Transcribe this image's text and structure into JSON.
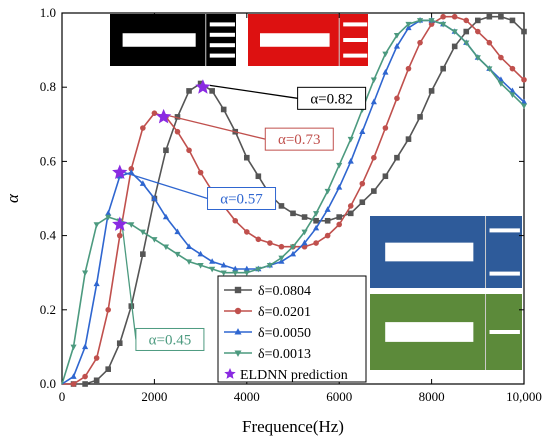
{
  "chart_data": {
    "type": "line",
    "xlabel": "Frequence(Hz)",
    "ylabel": "α",
    "xlim": [
      0,
      10000
    ],
    "ylim": [
      0,
      1.0
    ],
    "x_ticks": [
      0,
      2000,
      4000,
      6000,
      8000,
      10000
    ],
    "x_tick_labels": [
      "0",
      "2000",
      "4000",
      "6000",
      "8000",
      "10,000"
    ],
    "y_ticks": [
      0,
      0.2,
      0.4,
      0.6,
      0.8,
      1.0
    ],
    "y_tick_labels": [
      "0.0",
      "0.2",
      "0.4",
      "0.6",
      "0.8",
      "1.0"
    ],
    "grid": false,
    "legend_position": "bottom-center",
    "series": [
      {
        "name": "δ=0.0804",
        "color": "#555555",
        "marker": "square",
        "x": [
          0,
          250,
          500,
          750,
          1000,
          1250,
          1500,
          1750,
          2000,
          2250,
          2500,
          2750,
          3000,
          3250,
          3500,
          3750,
          4000,
          4250,
          4500,
          4750,
          5000,
          5250,
          5500,
          5750,
          6000,
          6250,
          6500,
          6750,
          7000,
          7250,
          7500,
          7750,
          8000,
          8250,
          8500,
          8750,
          9000,
          9250,
          9500,
          9750,
          10000
        ],
        "y": [
          0.0,
          0.0,
          0.0,
          0.01,
          0.04,
          0.11,
          0.21,
          0.35,
          0.5,
          0.63,
          0.72,
          0.79,
          0.81,
          0.79,
          0.74,
          0.68,
          0.61,
          0.56,
          0.51,
          0.48,
          0.46,
          0.45,
          0.44,
          0.44,
          0.45,
          0.46,
          0.49,
          0.52,
          0.56,
          0.61,
          0.66,
          0.72,
          0.79,
          0.85,
          0.91,
          0.95,
          0.98,
          0.99,
          0.99,
          0.98,
          0.95
        ]
      },
      {
        "name": "δ=0.0201",
        "color": "#c0504d",
        "marker": "circle",
        "x": [
          0,
          250,
          500,
          750,
          1000,
          1250,
          1500,
          1750,
          2000,
          2250,
          2500,
          2750,
          3000,
          3250,
          3500,
          3750,
          4000,
          4250,
          4500,
          4750,
          5000,
          5250,
          5500,
          5750,
          6000,
          6250,
          6500,
          6750,
          7000,
          7250,
          7500,
          7750,
          8000,
          8250,
          8500,
          8750,
          9000,
          9250,
          9500,
          9750,
          10000
        ],
        "y": [
          0.0,
          0.0,
          0.02,
          0.07,
          0.2,
          0.4,
          0.58,
          0.69,
          0.73,
          0.72,
          0.68,
          0.63,
          0.57,
          0.52,
          0.48,
          0.44,
          0.41,
          0.39,
          0.38,
          0.37,
          0.37,
          0.37,
          0.38,
          0.4,
          0.43,
          0.48,
          0.54,
          0.61,
          0.69,
          0.77,
          0.85,
          0.92,
          0.97,
          0.99,
          0.99,
          0.98,
          0.95,
          0.92,
          0.88,
          0.85,
          0.82
        ]
      },
      {
        "name": "δ=0.0050",
        "color": "#2f66d0",
        "marker": "triangle-up",
        "x": [
          0,
          250,
          500,
          750,
          1000,
          1250,
          1500,
          1750,
          2000,
          2250,
          2500,
          2750,
          3000,
          3250,
          3500,
          3750,
          4000,
          4250,
          4500,
          4750,
          5000,
          5250,
          5500,
          5750,
          6000,
          6250,
          6500,
          6750,
          7000,
          7250,
          7500,
          7750,
          8000,
          8250,
          8500,
          8750,
          9000,
          9250,
          9500,
          9750,
          10000
        ],
        "y": [
          0.0,
          0.02,
          0.1,
          0.27,
          0.46,
          0.56,
          0.57,
          0.54,
          0.5,
          0.45,
          0.41,
          0.37,
          0.35,
          0.33,
          0.32,
          0.31,
          0.31,
          0.31,
          0.32,
          0.33,
          0.35,
          0.38,
          0.42,
          0.47,
          0.53,
          0.6,
          0.68,
          0.76,
          0.84,
          0.91,
          0.96,
          0.98,
          0.98,
          0.97,
          0.95,
          0.92,
          0.88,
          0.85,
          0.82,
          0.79,
          0.76
        ]
      },
      {
        "name": "δ=0.0013",
        "color": "#4c9a7f",
        "marker": "triangle-down",
        "x": [
          0,
          250,
          500,
          750,
          1000,
          1250,
          1500,
          1750,
          2000,
          2250,
          2500,
          2750,
          3000,
          3250,
          3500,
          3750,
          4000,
          4250,
          4500,
          4750,
          5000,
          5250,
          5500,
          5750,
          6000,
          6250,
          6500,
          6750,
          7000,
          7250,
          7500,
          7750,
          8000,
          8250,
          8500,
          8750,
          9000,
          9250,
          9500,
          9750,
          10000
        ],
        "y": [
          0.0,
          0.1,
          0.3,
          0.43,
          0.45,
          0.44,
          0.43,
          0.41,
          0.39,
          0.37,
          0.35,
          0.33,
          0.32,
          0.31,
          0.3,
          0.3,
          0.3,
          0.31,
          0.32,
          0.34,
          0.37,
          0.41,
          0.46,
          0.52,
          0.59,
          0.66,
          0.74,
          0.82,
          0.89,
          0.94,
          0.97,
          0.98,
          0.98,
          0.97,
          0.95,
          0.92,
          0.88,
          0.85,
          0.81,
          0.78,
          0.75
        ]
      }
    ],
    "predictions": {
      "name": "ELDNN prediction",
      "color": "#8a2be2",
      "marker": "star",
      "points": [
        {
          "x": 3050,
          "y": 0.8
        },
        {
          "x": 2200,
          "y": 0.72
        },
        {
          "x": 1250,
          "y": 0.57
        },
        {
          "x": 1250,
          "y": 0.43
        }
      ]
    },
    "annotations": [
      {
        "text": "α=0.82",
        "color": "#000000",
        "border": "#000000",
        "point": {
          "x": 3200,
          "y": 0.805
        },
        "box_at": {
          "x": 5100,
          "y": 0.77
        }
      },
      {
        "text": "α=0.73",
        "color": "#c0504d",
        "border": "#c0504d",
        "point": {
          "x": 2250,
          "y": 0.725
        },
        "box_at": {
          "x": 4400,
          "y": 0.66
        }
      },
      {
        "text": "α=0.57",
        "color": "#2f66d0",
        "border": "#2f66d0",
        "point": {
          "x": 1350,
          "y": 0.57
        },
        "box_at": {
          "x": 3150,
          "y": 0.5
        }
      },
      {
        "text": "α=0.45",
        "color": "#4c9a7f",
        "border": "#4c9a7f",
        "point": {
          "x": 1300,
          "y": 0.43
        },
        "box_at": {
          "x": 1600,
          "y": 0.12
        }
      }
    ],
    "insets": [
      {
        "name": "structure-black",
        "fill": "#000000",
        "slot": "#ffffff"
      },
      {
        "name": "structure-red",
        "fill": "#dd1111",
        "slot": "#ffffff"
      },
      {
        "name": "structure-blue",
        "fill": "#2e5b9a",
        "slot": "#ffffff"
      },
      {
        "name": "structure-green",
        "fill": "#5c8a3a",
        "slot": "#ffffff"
      }
    ]
  }
}
